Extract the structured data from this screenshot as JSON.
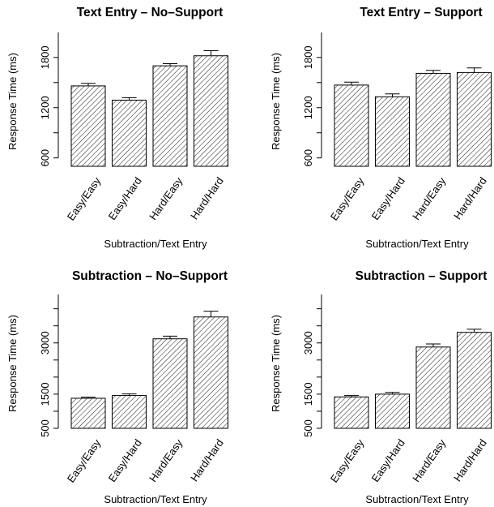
{
  "chart_data": [
    {
      "type": "bar",
      "title": "Text Entry – No–Support",
      "xlabel": "Subtraction/Text Entry",
      "ylabel": "Response Time (ms)",
      "categories": [
        "Easy/Easy",
        "Easy/Hard",
        "Hard/Easy",
        "Hard/Hard"
      ],
      "values": [
        1460,
        1290,
        1700,
        1820
      ],
      "errors": [
        30,
        30,
        25,
        60
      ],
      "ylim": [
        500,
        2050
      ],
      "yticks": [
        600,
        1200,
        1800
      ],
      "hatch": "diagonal",
      "grid": false
    },
    {
      "type": "bar",
      "title": "Text Entry – Support",
      "xlabel": "Subtraction/Text Entry",
      "ylabel": "Response Time (ms)",
      "categories": [
        "Easy/Easy",
        "Easy/Hard",
        "Hard/Easy",
        "Hard/Hard"
      ],
      "values": [
        1470,
        1330,
        1610,
        1620
      ],
      "errors": [
        35,
        35,
        35,
        55
      ],
      "ylim": [
        500,
        2050
      ],
      "yticks": [
        600,
        1200,
        1800
      ],
      "hatch": "diagonal",
      "grid": false
    },
    {
      "type": "bar",
      "title": "Subtraction – No–Support",
      "xlabel": "Subtraction/Text Entry",
      "ylabel": "Response Time (ms)",
      "categories": [
        "Easy/Easy",
        "Easy/Hard",
        "Hard/Easy",
        "Hard/Hard"
      ],
      "values": [
        1380,
        1460,
        3120,
        3760
      ],
      "errors": [
        30,
        45,
        80,
        170
      ],
      "ylim": [
        500,
        4300
      ],
      "yticks": [
        500,
        1500,
        3000
      ],
      "hatch": "diagonal",
      "grid": false
    },
    {
      "type": "bar",
      "title": "Subtraction – Support",
      "xlabel": "Subtraction/Text Entry",
      "ylabel": "Response Time (ms)",
      "categories": [
        "Easy/Easy",
        "Easy/Hard",
        "Hard/Easy",
        "Hard/Hard"
      ],
      "values": [
        1420,
        1500,
        2880,
        3310
      ],
      "errors": [
        40,
        50,
        90,
        90
      ],
      "ylim": [
        500,
        4300
      ],
      "yticks": [
        500,
        1500,
        3000
      ],
      "hatch": "diagonal",
      "grid": false
    }
  ]
}
